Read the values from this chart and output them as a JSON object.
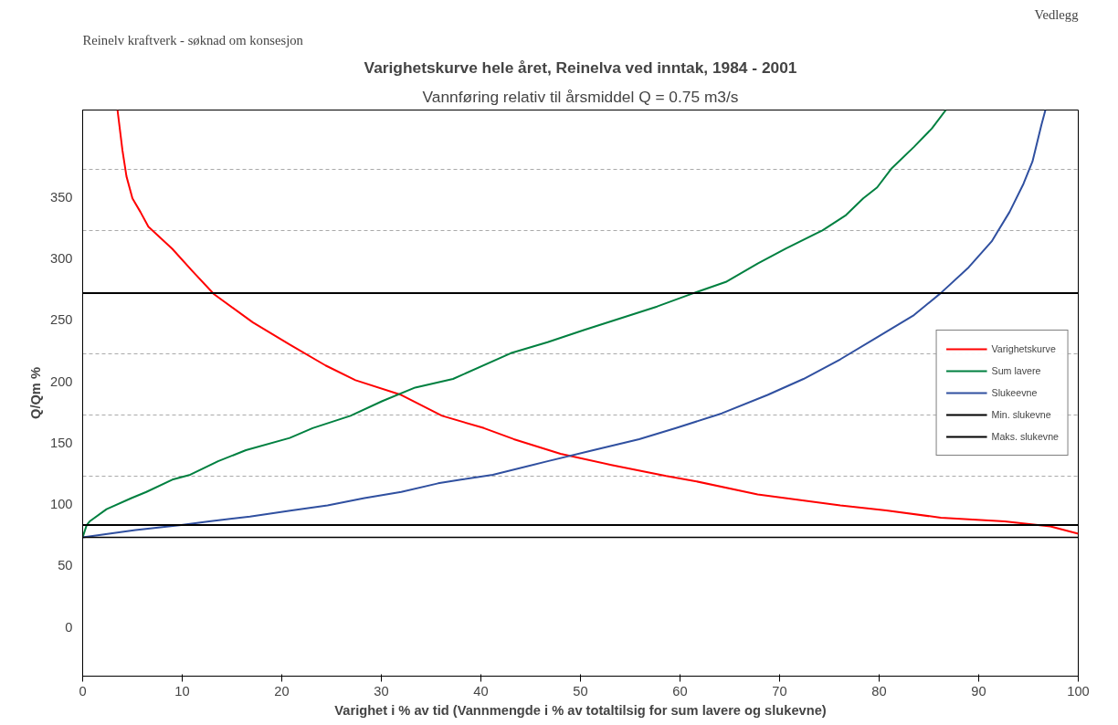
{
  "chart_data": {
    "type": "line",
    "title": "Varighetskurve hele året, Reinelva ved inntak, 1984 - 2001",
    "subtitle": "Vannføring relativ til årsmiddel Q = 0.75 m3/s",
    "xlabel": "Varighet i % av tid (Vannmengde i % av totaltilsig for sum lavere og slukevne)",
    "ylabel": "Q/Qm %",
    "annotations": [
      "Reinelv kraftverk  -  søknad om konsesjon",
      "Vedlegg"
    ],
    "xlim": [
      0,
      100
    ],
    "xticks": [
      0,
      10,
      20,
      30,
      40,
      50,
      60,
      70,
      80,
      90,
      100
    ],
    "ylim": [
      -40,
      421
    ],
    "yticks": [
      0,
      50,
      100,
      150,
      200,
      250,
      300,
      350,
      {
        "value": 122.5,
        "label": null
      },
      {
        "value": 172.5,
        "label": null
      },
      {
        "value": 222.5,
        "label": null
      },
      {
        "value": 272.5,
        "label": null
      },
      {
        "value": 322.5,
        "label": null
      },
      {
        "value": 372.5,
        "label": null
      }
    ],
    "grid": "y",
    "legend": "right",
    "line_style": "solid",
    "marker": "none",
    "ref_lines": [
      {
        "axis": "y",
        "value": 73,
        "color": "#000000"
      }
    ],
    "series": [
      {
        "name": "Varighetskurve",
        "color": "#ff0000",
        "x": [
          3.5,
          4.0,
          4.4,
          5.0,
          5.8,
          6.6,
          9.0,
          11.0,
          13.2,
          17.1,
          20.8,
          24.4,
          27.4,
          32,
          36.1,
          40.3,
          43.3,
          48,
          53.1,
          58.6,
          61.4,
          67.8,
          76.1,
          80.7,
          86.2,
          92.6,
          97.2,
          100
        ],
        "values": [
          421,
          388,
          367,
          349,
          338,
          326,
          308,
          290,
          271,
          248,
          230,
          213,
          201,
          189,
          172,
          162,
          153,
          141,
          132,
          123,
          119,
          108,
          99,
          95,
          89,
          86,
          82,
          76
        ]
      },
      {
        "name": "Sum lavere",
        "color": "#008040",
        "x": [
          0,
          0.4,
          0.7,
          2.4,
          4.9,
          6.4,
          9.0,
          10.8,
          13.6,
          16.4,
          20.8,
          23.1,
          26.9,
          30.1,
          33.4,
          37.2,
          43,
          46.7,
          50.4,
          57.7,
          61.4,
          64.6,
          67.8,
          70.6,
          74.3,
          76.6,
          78.4,
          79.8,
          81.2,
          83.5,
          85.3,
          86.7
        ],
        "values": [
          73,
          83,
          86,
          96,
          105,
          110,
          120,
          124,
          135,
          144,
          154,
          162,
          172,
          184,
          195,
          202,
          223,
          232,
          242,
          261,
          272,
          281,
          296,
          308,
          323,
          335,
          349,
          358,
          373,
          391,
          406,
          421
        ]
      },
      {
        "name": "Slukeevne",
        "color": "#3050a0",
        "x": [
          0,
          5.3,
          9.9,
          12.7,
          16.8,
          21,
          24.6,
          28.3,
          32,
          35.7,
          38,
          41.2,
          46.7,
          51.3,
          55.9,
          59.6,
          64.2,
          68.8,
          72.4,
          76.1,
          79.8,
          83.5,
          86.2,
          89.0,
          91.3,
          93.1,
          94.5,
          95.4,
          96.3,
          96.7
        ],
        "values": [
          73,
          79,
          83,
          86,
          90,
          95,
          99,
          105,
          110,
          117,
          120,
          124,
          135,
          144,
          153,
          162,
          174,
          189,
          202,
          218,
          236,
          254,
          272,
          293,
          314,
          338,
          361,
          379,
          409,
          421
        ]
      },
      {
        "name": "Min. slukevne",
        "color": "#000000",
        "x": [
          0,
          100
        ],
        "values": [
          83,
          83
        ]
      },
      {
        "name": "Maks. slukevne",
        "color": "#000000",
        "x": [
          0,
          100
        ],
        "values": [
          272,
          272
        ]
      }
    ]
  }
}
